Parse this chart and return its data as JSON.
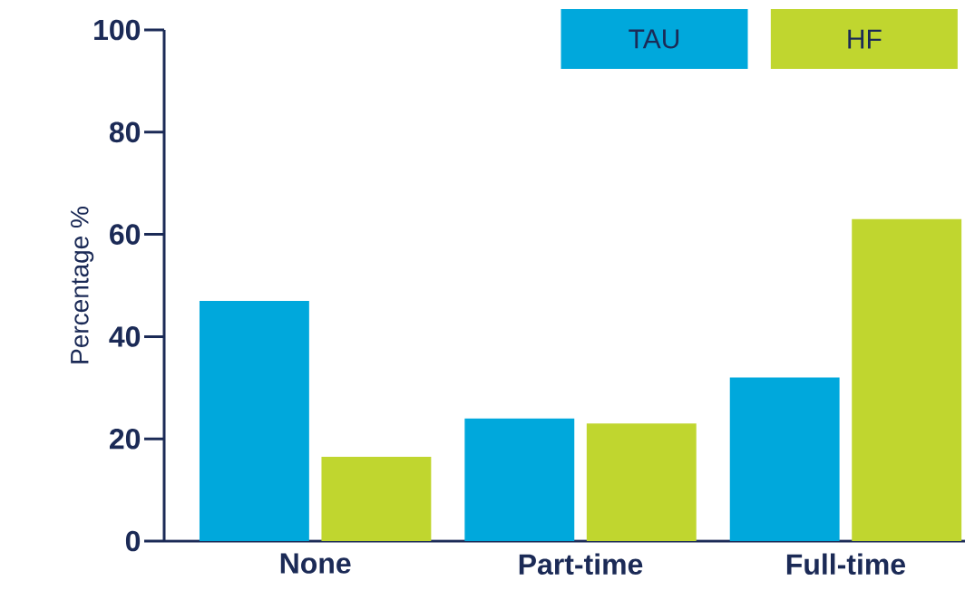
{
  "chart_data": {
    "type": "bar",
    "ylabel": "Percentage %",
    "categories": [
      "None",
      "Part-time",
      "Full-time"
    ],
    "series": [
      {
        "name": "TAU",
        "color": "#00a8dc",
        "values": [
          47,
          24,
          32
        ]
      },
      {
        "name": "HF",
        "color": "#c0d62f",
        "values": [
          16.5,
          23,
          63
        ]
      }
    ],
    "ylim": [
      0,
      100
    ],
    "yticks": [
      0,
      20,
      40,
      60,
      80,
      100
    ],
    "legend": "top right"
  }
}
